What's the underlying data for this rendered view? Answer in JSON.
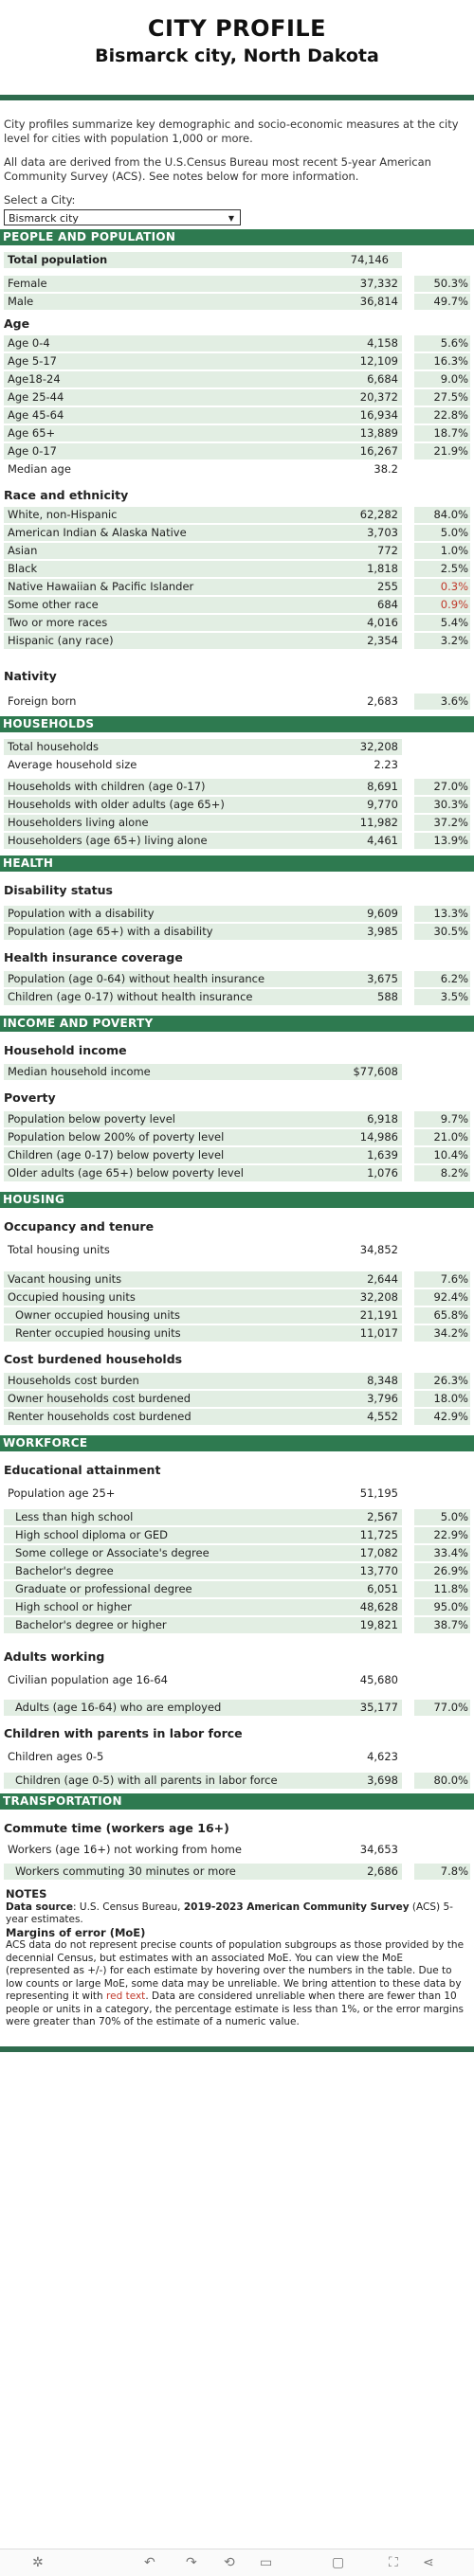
{
  "header": {
    "title": "CITY PROFILE",
    "subtitle": "Bismarck city, North Dakota"
  },
  "intro": {
    "p1": "City profiles summarize key demographic and socio-economic measures at the city level for cities with population 1,000 or more.",
    "p2": "All data are derived from the U.S.Census Bureau most recent 5-year American Community Survey (ACS). See notes below for more information.",
    "select_label": "Select a City:",
    "select_value": "Bismarck city"
  },
  "sections": {
    "people": "PEOPLE AND POPULATION",
    "households": "HOUSEHOLDS",
    "health": "HEALTH",
    "income": "INCOME AND POVERTY",
    "housing": "HOUSING",
    "workforce": "WORKFORCE",
    "transportation": "TRANSPORTATION"
  },
  "subs": {
    "age": "Age",
    "race": "Race and ethnicity",
    "nativity": "Nativity",
    "disability": "Disability status",
    "insurance": "Health insurance coverage",
    "hh_income": "Household income",
    "poverty": "Poverty",
    "occupancy": "Occupancy and tenure",
    "cost": "Cost burdened households",
    "education": "Educational attainment",
    "adults_working": "Adults working",
    "children_labor": "Children with parents in labor force",
    "commute": "Commute time (workers age 16+)"
  },
  "rows": {
    "total_pop": {
      "label": "Total population",
      "value": "74,146"
    },
    "female": {
      "label": "Female",
      "value": "37,332",
      "pct": "50.3%"
    },
    "male": {
      "label": "Male",
      "value": "36,814",
      "pct": "49.7%"
    },
    "age04": {
      "label": "Age 0-4",
      "value": "4,158",
      "pct": "5.6%"
    },
    "age517": {
      "label": "Age 5-17",
      "value": "12,109",
      "pct": "16.3%"
    },
    "age1824": {
      "label": "Age18-24",
      "value": "6,684",
      "pct": "9.0%"
    },
    "age2544": {
      "label": "Age 25-44",
      "value": "20,372",
      "pct": "27.5%"
    },
    "age4564": {
      "label": "Age 45-64",
      "value": "16,934",
      "pct": "22.8%"
    },
    "age65": {
      "label": "Age 65+",
      "value": "13,889",
      "pct": "18.7%"
    },
    "age017": {
      "label": "Age 0-17",
      "value": "16,267",
      "pct": "21.9%"
    },
    "median_age": {
      "label": "Median age",
      "value": "38.2"
    },
    "white": {
      "label": "White, non-Hispanic",
      "value": "62,282",
      "pct": "84.0%"
    },
    "aian": {
      "label": "American Indian & Alaska Native",
      "value": "3,703",
      "pct": "5.0%"
    },
    "asian": {
      "label": "Asian",
      "value": "772",
      "pct": "1.0%"
    },
    "black": {
      "label": "Black",
      "value": "1,818",
      "pct": "2.5%"
    },
    "nhpi": {
      "label": "Native Hawaiian & Pacific Islander",
      "value": "255",
      "pct": "0.3%"
    },
    "other": {
      "label": "Some other race",
      "value": "684",
      "pct": "0.9%"
    },
    "two": {
      "label": "Two or more races",
      "value": "4,016",
      "pct": "5.4%"
    },
    "hispanic": {
      "label": "Hispanic (any race)",
      "value": "2,354",
      "pct": "3.2%"
    },
    "foreign": {
      "label": "Foreign born",
      "value": "2,683",
      "pct": "3.6%"
    },
    "tot_hh": {
      "label": "Total households",
      "value": "32,208"
    },
    "avg_hh": {
      "label": "Average household size",
      "value": "2.23"
    },
    "hh_children": {
      "label": "Households with children (age 0-17)",
      "value": "8,691",
      "pct": "27.0%"
    },
    "hh_older": {
      "label": "Households with older adults (age 65+)",
      "value": "9,770",
      "pct": "30.3%"
    },
    "hh_alone": {
      "label": "Householders living alone",
      "value": "11,982",
      "pct": "37.2%"
    },
    "hh_65alone": {
      "label": "Householders (age 65+) living alone",
      "value": "4,461",
      "pct": "13.9%"
    },
    "disab": {
      "label": "Population with a disability",
      "value": "9,609",
      "pct": "13.3%"
    },
    "disab65": {
      "label": "Population (age 65+) with a disability",
      "value": "3,985",
      "pct": "30.5%"
    },
    "noins": {
      "label": "Population (age 0-64) without health insurance",
      "value": "3,675",
      "pct": "6.2%"
    },
    "noins_ch": {
      "label": "Children (age 0-17) without health insurance",
      "value": "588",
      "pct": "3.5%"
    },
    "median_inc": {
      "label": "Median household income",
      "value": "$77,608"
    },
    "pov": {
      "label": "Population below poverty level",
      "value": "6,918",
      "pct": "9.7%"
    },
    "pov200": {
      "label": "Population below 200% of poverty level",
      "value": "14,986",
      "pct": "21.0%"
    },
    "pov_ch": {
      "label": "Children (age 0-17) below poverty level",
      "value": "1,639",
      "pct": "10.4%"
    },
    "pov_old": {
      "label": "Older adults (age 65+) below poverty level",
      "value": "1,076",
      "pct": "8.2%"
    },
    "tot_units": {
      "label": "Total housing units",
      "value": "34,852"
    },
    "vacant": {
      "label": "Vacant housing units",
      "value": "2,644",
      "pct": "7.6%"
    },
    "occupied": {
      "label": "Occupied housing units",
      "value": "32,208",
      "pct": "92.4%"
    },
    "owner": {
      "label": "Owner occupied housing units",
      "value": "21,191",
      "pct": "65.8%"
    },
    "renter": {
      "label": "Renter occupied housing units",
      "value": "11,017",
      "pct": "34.2%"
    },
    "cb": {
      "label": "Households cost burden",
      "value": "8,348",
      "pct": "26.3%"
    },
    "cb_owner": {
      "label": "Owner households cost burdened",
      "value": "3,796",
      "pct": "18.0%"
    },
    "cb_renter": {
      "label": "Renter households cost burdened",
      "value": "4,552",
      "pct": "42.9%"
    },
    "pop25": {
      "label": "Population age 25+",
      "value": "51,195"
    },
    "lt_hs": {
      "label": "Less than high school",
      "value": "2,567",
      "pct": "5.0%"
    },
    "hs": {
      "label": "High school diploma or GED",
      "value": "11,725",
      "pct": "22.9%"
    },
    "some_col": {
      "label": "Some college or Associate's degree",
      "value": "17,082",
      "pct": "33.4%"
    },
    "bach": {
      "label": "Bachelor's degree",
      "value": "13,770",
      "pct": "26.9%"
    },
    "grad": {
      "label": "Graduate or professional degree",
      "value": "6,051",
      "pct": "11.8%"
    },
    "hs_higher": {
      "label": "High school or higher",
      "value": "48,628",
      "pct": "95.0%"
    },
    "bach_higher": {
      "label": "Bachelor's degree or higher",
      "value": "19,821",
      "pct": "38.7%"
    },
    "civ": {
      "label": "Civilian population age 16-64",
      "value": "45,680"
    },
    "employed": {
      "label": "Adults (age 16-64) who are employed",
      "value": "35,177",
      "pct": "77.0%"
    },
    "ch05": {
      "label": "Children ages 0-5",
      "value": "4,623"
    },
    "ch05_lf": {
      "label": "Children (age 0-5) with all parents in labor force",
      "value": "3,698",
      "pct": "80.0%"
    },
    "workers": {
      "label": "Workers (age 16+) not working from home",
      "value": "34,653"
    },
    "commute30": {
      "label": "Workers commuting 30 minutes or more",
      "value": "2,686",
      "pct": "7.8%"
    }
  },
  "notes": {
    "title": "NOTES",
    "source_label": "Data source",
    "source_pre": ": U.S. Census Bureau, ",
    "source_bold": "2019-2023 American Community Survey",
    "source_post": " (ACS) 5-year estimates.",
    "moe_title": "Margins of error (MoE)",
    "moe_text1": "ACS data do not represent precise counts of population subgroups as those provided by the decennial Census, but estimates with an associated MoE. You can view the MoE (represented as +/-) for each estimate by hovering over the numbers in the table.  Due to low counts or large MoE, some data may be unreliable. We bring attention to these data by representing it with ",
    "moe_red": "red text",
    "moe_text2": ". Data are considered unreliable when there are fewer than 10 people or units in a category, the percentage estimate is less than 1%, or the error margins were greater than 70% of the estimate of a numeric value."
  },
  "colors": {
    "section": "#2e7a50",
    "bar": "#e2eee3",
    "red": "#c0392b"
  }
}
